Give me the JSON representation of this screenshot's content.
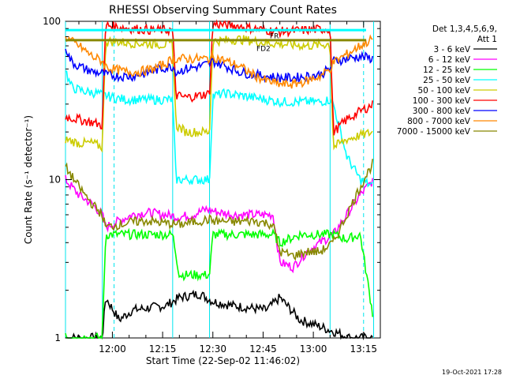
{
  "chart_data": {
    "type": "line",
    "title": "RHESSI Observing Summary Count Rates",
    "xlabel": "Start Time (22-Sep-02 11:46:02)",
    "ylabel": "Count Rate (s⁻¹ detector⁻¹)",
    "yscale": "log",
    "ylim": [
      1,
      100
    ],
    "xlim_minutes_from_start": [
      0,
      94
    ],
    "x_tick_labels": [
      "12:00",
      "12:15",
      "12:30",
      "12:45",
      "13:00",
      "13:15"
    ],
    "x_tick_minutes": [
      14,
      29,
      44,
      59,
      74,
      89
    ],
    "y_tick_labels": [
      "1",
      "10",
      "100"
    ],
    "y_tick_values": [
      1,
      10,
      100
    ],
    "legend_header": [
      "Det 1,3,4,5,6,9,",
      "Att 1"
    ],
    "legend_placement": "right",
    "annotations": [
      "FR",
      "FD2"
    ],
    "timestamp": "19-Oct-2021 17:28",
    "night_boundaries_minutes": [
      0,
      11,
      32,
      43,
      79,
      92
    ],
    "series": [
      {
        "name": "3 - 6 keV",
        "color": "#000000",
        "x": [
          0,
          11,
          12,
          16,
          20,
          30,
          34,
          40,
          44,
          50,
          60,
          64,
          70,
          75,
          80,
          85,
          92
        ],
        "y": [
          1,
          1,
          1.8,
          1.3,
          1.5,
          1.6,
          1.8,
          1.9,
          1.7,
          1.6,
          1.5,
          1.8,
          1.3,
          1.2,
          1.1,
          1,
          1
        ]
      },
      {
        "name": "6 - 12 keV",
        "color": "#ff00ff",
        "x": [
          0,
          4,
          8,
          11,
          12,
          16,
          20,
          24,
          30,
          34,
          38,
          42,
          46,
          50,
          56,
          62,
          64,
          68,
          72,
          76,
          80,
          84,
          88,
          92
        ],
        "y": [
          10,
          8,
          7,
          6,
          5,
          5.5,
          6,
          6.2,
          6,
          5.8,
          6,
          6.5,
          6.2,
          6,
          6,
          6,
          3,
          2.8,
          3.5,
          4,
          4.5,
          6,
          8,
          10
        ]
      },
      {
        "name": "12 - 25 keV",
        "color": "#00ff00",
        "x": [
          0,
          11,
          12,
          20,
          30,
          32,
          34,
          38,
          43,
          44,
          50,
          56,
          62,
          64,
          70,
          76,
          80,
          84,
          88,
          92
        ],
        "y": [
          1,
          1,
          4.5,
          4.5,
          4.5,
          4.5,
          2.5,
          2.5,
          2.5,
          4.5,
          4.5,
          4.5,
          4.5,
          4,
          4.5,
          4.5,
          4.5,
          4.2,
          4.5,
          1.3
        ]
      },
      {
        "name": "25 - 50 keV",
        "color": "#00ffff",
        "x": [
          0,
          1,
          2,
          6,
          10,
          11,
          12,
          14,
          18,
          24,
          30,
          32,
          33,
          36,
          40,
          43,
          44,
          48,
          52,
          56,
          60,
          64,
          68,
          72,
          76,
          79,
          80,
          84,
          88,
          92
        ],
        "y": [
          50,
          42,
          38,
          36,
          35,
          34,
          34,
          33,
          32,
          32,
          32,
          32,
          10,
          10,
          10,
          10,
          34,
          35,
          34,
          33,
          32,
          31,
          31,
          31,
          31,
          32,
          30,
          14,
          10,
          9
        ]
      },
      {
        "name": "50 - 100 keV",
        "color": "#cccc00",
        "x": [
          0,
          4,
          8,
          11,
          12,
          16,
          20,
          26,
          32,
          33,
          36,
          40,
          43,
          44,
          48,
          52,
          56,
          60,
          64,
          68,
          72,
          76,
          79,
          80,
          84,
          88,
          92
        ],
        "y": [
          18,
          17,
          17,
          16,
          75,
          74,
          73,
          72,
          71,
          22,
          20,
          20,
          20,
          75,
          76,
          77,
          75,
          73,
          72,
          71,
          70,
          71,
          72,
          16,
          18,
          19,
          20
        ]
      },
      {
        "name": "100 - 300 keV",
        "color": "#ff0000",
        "x": [
          0,
          4,
          8,
          11,
          12,
          16,
          20,
          26,
          32,
          33,
          36,
          40,
          43,
          44,
          48,
          52,
          56,
          60,
          64,
          68,
          72,
          76,
          79,
          80,
          84,
          88,
          92
        ],
        "y": [
          25,
          24,
          23,
          22,
          95,
          92,
          90,
          88,
          88,
          34,
          33,
          34,
          35,
          96,
          95,
          93,
          90,
          88,
          86,
          87,
          88,
          89,
          90,
          20,
          24,
          27,
          30
        ]
      },
      {
        "name": "300 - 800 keV",
        "color": "#0000ff",
        "x": [
          0,
          1,
          2,
          4,
          6,
          8,
          11,
          12,
          16,
          20,
          24,
          28,
          32,
          33,
          36,
          40,
          43,
          44,
          48,
          52,
          56,
          60,
          64,
          68,
          72,
          76,
          79,
          80,
          84,
          88,
          92
        ],
        "y": [
          70,
          60,
          55,
          52,
          50,
          48,
          47,
          46,
          45,
          45,
          47,
          50,
          52,
          48,
          50,
          52,
          54,
          56,
          52,
          48,
          46,
          45,
          44,
          44,
          45,
          46,
          50,
          56,
          58,
          60,
          58
        ]
      },
      {
        "name": "800 - 7000 keV",
        "color": "#ff8800",
        "x": [
          0,
          2,
          4,
          6,
          8,
          11,
          12,
          14,
          18,
          22,
          26,
          30,
          32,
          33,
          36,
          40,
          43,
          44,
          48,
          52,
          56,
          60,
          64,
          68,
          72,
          76,
          79,
          80,
          84,
          88,
          92
        ],
        "y": [
          80,
          74,
          70,
          65,
          60,
          56,
          52,
          50,
          48,
          48,
          50,
          54,
          58,
          58,
          58,
          58,
          58,
          60,
          56,
          52,
          46,
          42,
          40,
          40,
          42,
          45,
          50,
          55,
          62,
          70,
          78
        ]
      },
      {
        "name": "7000 - 15000 keV",
        "color": "#888800",
        "x": [
          0,
          4,
          8,
          11,
          12,
          16,
          20,
          24,
          30,
          34,
          38,
          43,
          44,
          50,
          56,
          62,
          64,
          68,
          72,
          76,
          80,
          84,
          88,
          92
        ],
        "y": [
          12,
          9,
          7,
          6,
          5,
          5.2,
          5.4,
          5.5,
          5.3,
          5.2,
          5.4,
          5.6,
          5.5,
          5.4,
          5.5,
          5.2,
          3.5,
          3.3,
          3.5,
          3.5,
          4,
          6,
          9,
          13
        ]
      }
    ],
    "horizontal_lines": [
      {
        "name": "flare flag level",
        "color": "#888800",
        "value": 76
      },
      {
        "name": "saa level",
        "color": "#00ffff",
        "value": 88
      }
    ]
  }
}
